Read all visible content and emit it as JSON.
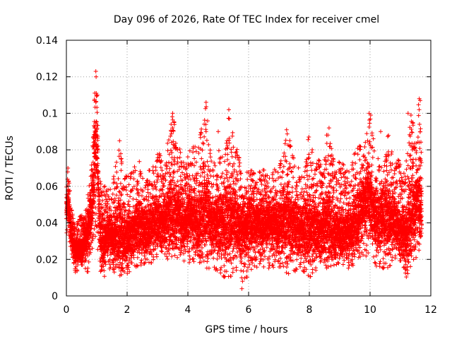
{
  "chart_data": {
    "type": "scatter",
    "title": "Day 096 of 2026, Rate Of TEC Index for receiver cmel",
    "xlabel": "GPS time / hours",
    "ylabel": "ROTI / TECUs",
    "xlim": [
      0,
      12
    ],
    "ylim": [
      0,
      0.14
    ],
    "xticks": [
      0,
      2,
      4,
      6,
      8,
      10,
      12
    ],
    "xtick_labels": [
      "0",
      "2",
      "4",
      "6",
      "8",
      "10",
      "12"
    ],
    "yticks": [
      0,
      0.02,
      0.04,
      0.06,
      0.08,
      0.1,
      0.12,
      0.14
    ],
    "ytick_labels": [
      "0",
      "0.02",
      "0.04",
      "0.06",
      "0.08",
      "0.1",
      "0.12",
      "0.14"
    ],
    "grid": true,
    "marker": "+",
    "series_color": "#ff0000",
    "series": [
      {
        "name": "ROTI",
        "envelope": {
          "x": [
            0.0,
            0.05,
            0.1,
            0.2,
            0.3,
            0.5,
            0.7,
            0.85,
            0.95,
            1.0,
            1.1,
            1.2,
            1.4,
            1.6,
            1.75,
            1.85,
            2.0,
            2.2,
            2.4,
            2.6,
            2.8,
            3.0,
            3.2,
            3.4,
            3.5,
            3.7,
            3.9,
            4.1,
            4.3,
            4.6,
            4.8,
            5.0,
            5.2,
            5.35,
            5.6,
            5.8,
            6.0,
            6.2,
            6.4,
            6.6,
            6.8,
            7.0,
            7.3,
            7.5,
            7.7,
            8.0,
            8.2,
            8.4,
            8.6,
            8.8,
            9.0,
            9.2,
            9.4,
            9.6,
            9.8,
            10.0,
            10.2,
            10.4,
            10.6,
            10.8,
            11.0,
            11.2,
            11.35,
            11.5,
            11.6,
            11.7
          ],
          "low": [
            0.03,
            0.035,
            0.03,
            0.02,
            0.012,
            0.015,
            0.012,
            0.025,
            0.03,
            0.03,
            0.012,
            0.008,
            0.015,
            0.012,
            0.01,
            0.01,
            0.012,
            0.015,
            0.015,
            0.018,
            0.018,
            0.02,
            0.02,
            0.02,
            0.02,
            0.02,
            0.018,
            0.018,
            0.018,
            0.015,
            0.015,
            0.012,
            0.01,
            0.01,
            0.012,
            0.004,
            0.012,
            0.015,
            0.015,
            0.015,
            0.015,
            0.015,
            0.012,
            0.012,
            0.015,
            0.01,
            0.012,
            0.015,
            0.015,
            0.015,
            0.018,
            0.015,
            0.015,
            0.02,
            0.02,
            0.025,
            0.015,
            0.015,
            0.015,
            0.02,
            0.015,
            0.01,
            0.015,
            0.02,
            0.02,
            0.03
          ],
          "high": [
            0.065,
            0.07,
            0.06,
            0.045,
            0.04,
            0.045,
            0.055,
            0.075,
            0.12,
            0.123,
            0.065,
            0.06,
            0.06,
            0.07,
            0.085,
            0.07,
            0.065,
            0.07,
            0.075,
            0.07,
            0.07,
            0.08,
            0.075,
            0.09,
            0.1,
            0.085,
            0.07,
            0.088,
            0.08,
            0.105,
            0.07,
            0.08,
            0.09,
            0.1,
            0.085,
            0.065,
            0.07,
            0.068,
            0.07,
            0.068,
            0.07,
            0.07,
            0.091,
            0.075,
            0.07,
            0.09,
            0.075,
            0.075,
            0.092,
            0.075,
            0.075,
            0.07,
            0.075,
            0.084,
            0.08,
            0.1,
            0.075,
            0.08,
            0.09,
            0.075,
            0.075,
            0.075,
            0.1,
            0.09,
            0.108,
            0.09
          ],
          "typical": [
            0.045,
            0.055,
            0.045,
            0.03,
            0.025,
            0.025,
            0.035,
            0.05,
            0.08,
            0.09,
            0.035,
            0.03,
            0.035,
            0.03,
            0.04,
            0.03,
            0.03,
            0.035,
            0.04,
            0.035,
            0.04,
            0.04,
            0.04,
            0.045,
            0.045,
            0.045,
            0.04,
            0.045,
            0.04,
            0.045,
            0.04,
            0.04,
            0.04,
            0.045,
            0.04,
            0.035,
            0.04,
            0.04,
            0.04,
            0.04,
            0.04,
            0.04,
            0.04,
            0.04,
            0.035,
            0.04,
            0.035,
            0.035,
            0.04,
            0.035,
            0.035,
            0.035,
            0.035,
            0.045,
            0.05,
            0.055,
            0.04,
            0.045,
            0.045,
            0.04,
            0.035,
            0.03,
            0.045,
            0.05,
            0.055,
            0.045
          ]
        },
        "peaks": [
          [
            0.97,
            0.123
          ],
          [
            0.98,
            0.12
          ],
          [
            1.02,
            0.11
          ],
          [
            4.6,
            0.106
          ],
          [
            5.35,
            0.102
          ],
          [
            3.5,
            0.1
          ],
          [
            9.97,
            0.1
          ],
          [
            10.02,
            0.099
          ],
          [
            11.25,
            0.1
          ],
          [
            11.62,
            0.108
          ],
          [
            11.65,
            0.107
          ],
          [
            4.6,
            0.09
          ],
          [
            7.25,
            0.091
          ],
          [
            8.65,
            0.092
          ],
          [
            1.75,
            0.085
          ],
          [
            5.0,
            0.09
          ],
          [
            10.35,
            0.09
          ],
          [
            3.45,
            0.09
          ],
          [
            0.05,
            0.07
          ],
          [
            5.78,
            0.004
          ],
          [
            5.8,
            0.008
          ]
        ]
      }
    ]
  }
}
